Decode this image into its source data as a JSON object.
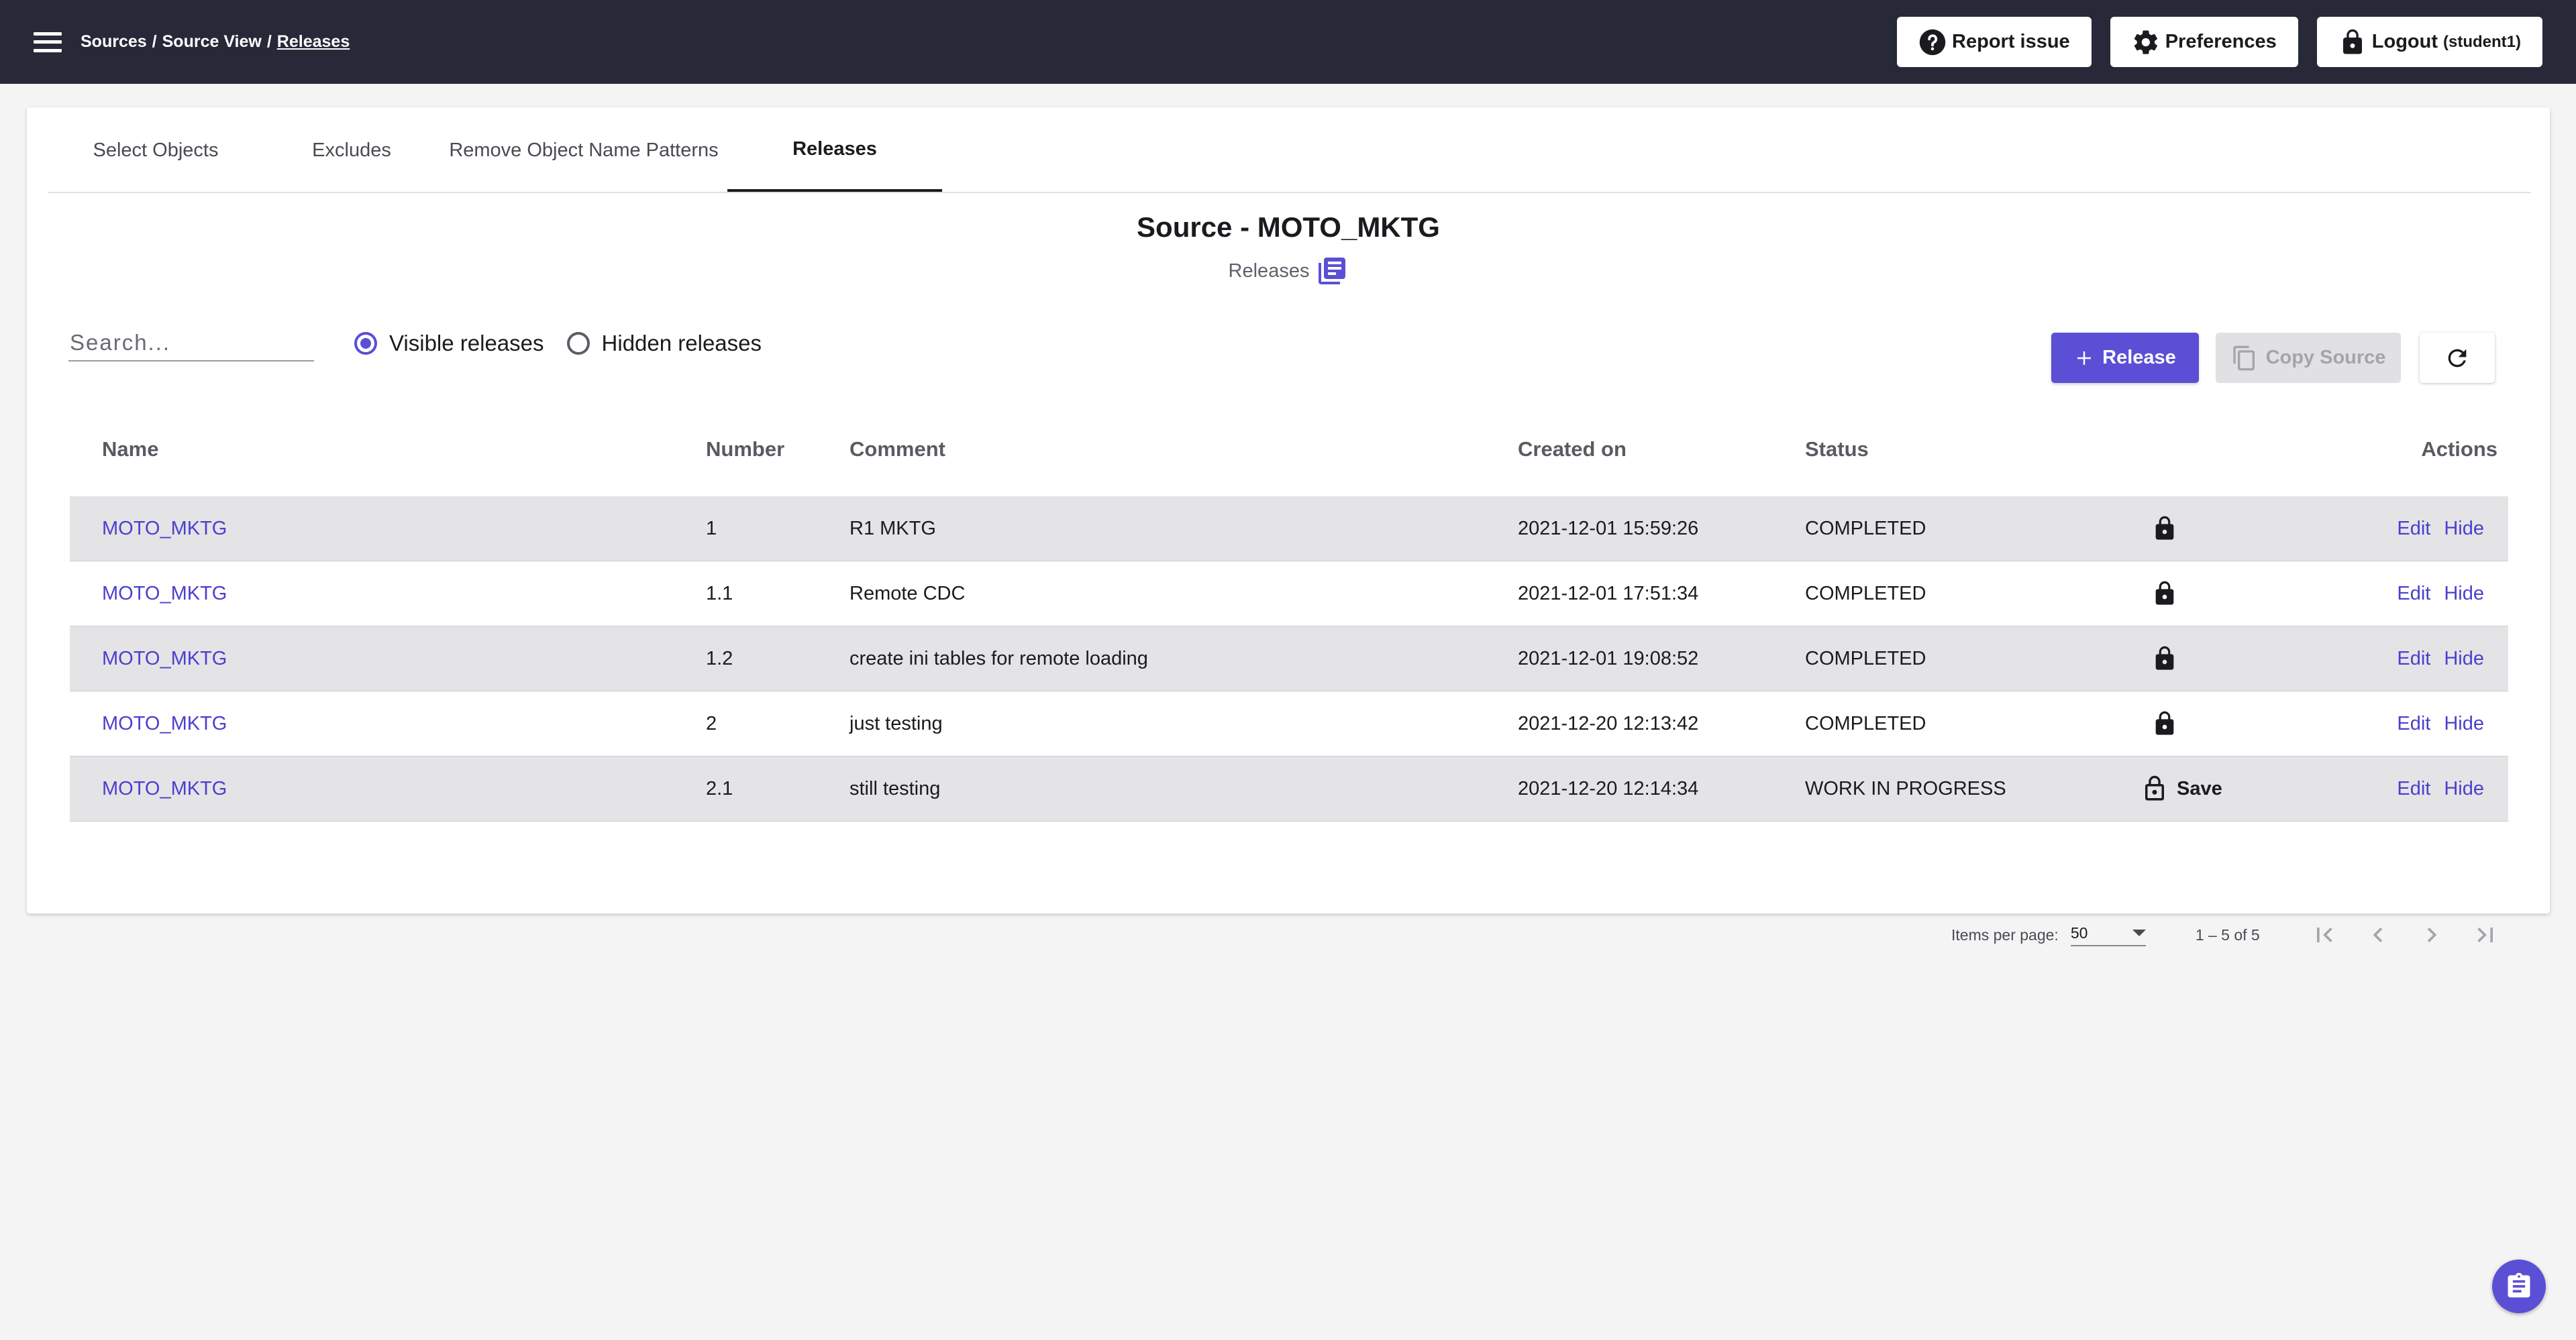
{
  "breadcrumb": {
    "part1": "Sources",
    "sep1": "/",
    "part2": "Source View",
    "sep2": "/",
    "current": "Releases"
  },
  "top_actions": {
    "report_issue": "Report issue",
    "preferences": "Preferences",
    "logout": "Logout",
    "logout_user": "(student1)"
  },
  "tabs": [
    {
      "label": "Select Objects"
    },
    {
      "label": "Excludes"
    },
    {
      "label": "Remove Object Name Patterns"
    },
    {
      "label": "Releases",
      "active": true
    }
  ],
  "page": {
    "title": "Source - MOTO_MKTG",
    "subtitle": "Releases"
  },
  "search": {
    "placeholder": "Search...",
    "value": ""
  },
  "filters": {
    "visible": "Visible releases",
    "hidden": "Hidden releases",
    "selected": "visible"
  },
  "buttons": {
    "release": "Release",
    "copy_source": "Copy Source"
  },
  "table": {
    "headers": {
      "name": "Name",
      "number": "Number",
      "comment": "Comment",
      "created": "Created on",
      "status": "Status",
      "actions": "Actions"
    },
    "rows": [
      {
        "name": "MOTO_MKTG",
        "number": "1",
        "comment": "R1 MKTG",
        "created": "2021-12-01 15:59:26",
        "status": "COMPLETED",
        "locked": true,
        "edit": "Edit",
        "hide": "Hide"
      },
      {
        "name": "MOTO_MKTG",
        "number": "1.1",
        "comment": "Remote CDC",
        "created": "2021-12-01 17:51:34",
        "status": "COMPLETED",
        "locked": true,
        "edit": "Edit",
        "hide": "Hide"
      },
      {
        "name": "MOTO_MKTG",
        "number": "1.2",
        "comment": "create ini tables for remote loading",
        "created": "2021-12-01 19:08:52",
        "status": "COMPLETED",
        "locked": true,
        "edit": "Edit",
        "hide": "Hide"
      },
      {
        "name": "MOTO_MKTG",
        "number": "2",
        "comment": "just testing",
        "created": "2021-12-20 12:13:42",
        "status": "COMPLETED",
        "locked": true,
        "edit": "Edit",
        "hide": "Hide"
      },
      {
        "name": "MOTO_MKTG",
        "number": "2.1",
        "comment": "still testing",
        "created": "2021-12-20 12:14:34",
        "status": "WORK IN PROGRESS",
        "locked": false,
        "save": "Save",
        "edit": "Edit",
        "hide": "Hide"
      }
    ]
  },
  "paginator": {
    "items_per_page_label": "Items per page:",
    "items_per_page": "50",
    "range": "1 – 5 of 5"
  },
  "colors": {
    "topbar": "#272939",
    "accent": "#5b4fd6",
    "link": "#4b3fcf",
    "row_shade": "#e4e4e6"
  },
  "icons": {
    "menu": "menu-icon",
    "report": "help-circle-icon",
    "preferences": "gear-icon",
    "logout": "lock-icon",
    "releases": "library-books-icon",
    "release_add": "plus-icon",
    "copy": "copy-icon",
    "refresh": "refresh-icon",
    "locked": "lock-icon",
    "unlocked": "lock-open-icon",
    "first": "first-page-icon",
    "prev": "chevron-left-icon",
    "next": "chevron-right-icon",
    "last": "last-page-icon",
    "fab": "clipboard-icon"
  }
}
